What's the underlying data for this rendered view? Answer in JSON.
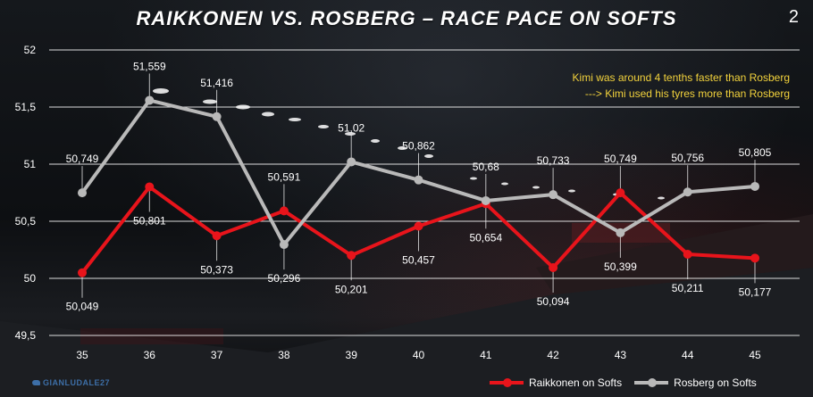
{
  "title": "RAIKKONEN VS. ROSBERG – RACE PACE ON SOFTS",
  "page_number": "2",
  "note_lines": [
    "Kimi was around 4 tenths faster than Rosberg",
    "---> Kimi used his tyres more than Rosberg"
  ],
  "watermark": "GIANLUDALE27",
  "colors": {
    "raikkonen": "#e8141b",
    "rosberg": "#b9b9b9",
    "note": "#f2d23c",
    "grid": "#ffffff"
  },
  "chart_data": {
    "type": "line",
    "title": "RAIKKONEN VS. ROSBERG – RACE PACE ON SOFTS",
    "xlabel": "",
    "ylabel": "",
    "categories": [
      "35",
      "36",
      "37",
      "38",
      "39",
      "40",
      "41",
      "42",
      "43",
      "44",
      "45"
    ],
    "ylim": [
      49.5,
      52
    ],
    "yticks": [
      {
        "value": 49.5,
        "label": "49,5"
      },
      {
        "value": 50,
        "label": "50"
      },
      {
        "value": 50.5,
        "label": "50,5"
      },
      {
        "value": 51,
        "label": "51"
      },
      {
        "value": 51.5,
        "label": "51,5"
      },
      {
        "value": 52,
        "label": "52"
      }
    ],
    "grid": true,
    "legend_position": "bottom-right",
    "series": [
      {
        "name": "Raikkonen on Softs",
        "values": [
          50.049,
          50.801,
          50.373,
          50.591,
          50.201,
          50.457,
          50.654,
          50.094,
          50.749,
          50.211,
          50.177
        ],
        "labels": [
          "50,049",
          "50,801",
          "50,373",
          "50,591",
          "50,201",
          "50,457",
          "50,654",
          "50,094",
          "50,749",
          "50,211",
          "50,177"
        ]
      },
      {
        "name": "Rosberg on Softs",
        "values": [
          50.749,
          51.559,
          51.416,
          50.296,
          51.02,
          50.862,
          50.68,
          50.733,
          50.399,
          50.756,
          50.805
        ],
        "labels": [
          "50,749",
          "51,559",
          "51,416",
          "50,296",
          "51,02",
          "50,862",
          "50,68",
          "50,733",
          "50,399",
          "50,756",
          "50,805"
        ]
      }
    ]
  }
}
